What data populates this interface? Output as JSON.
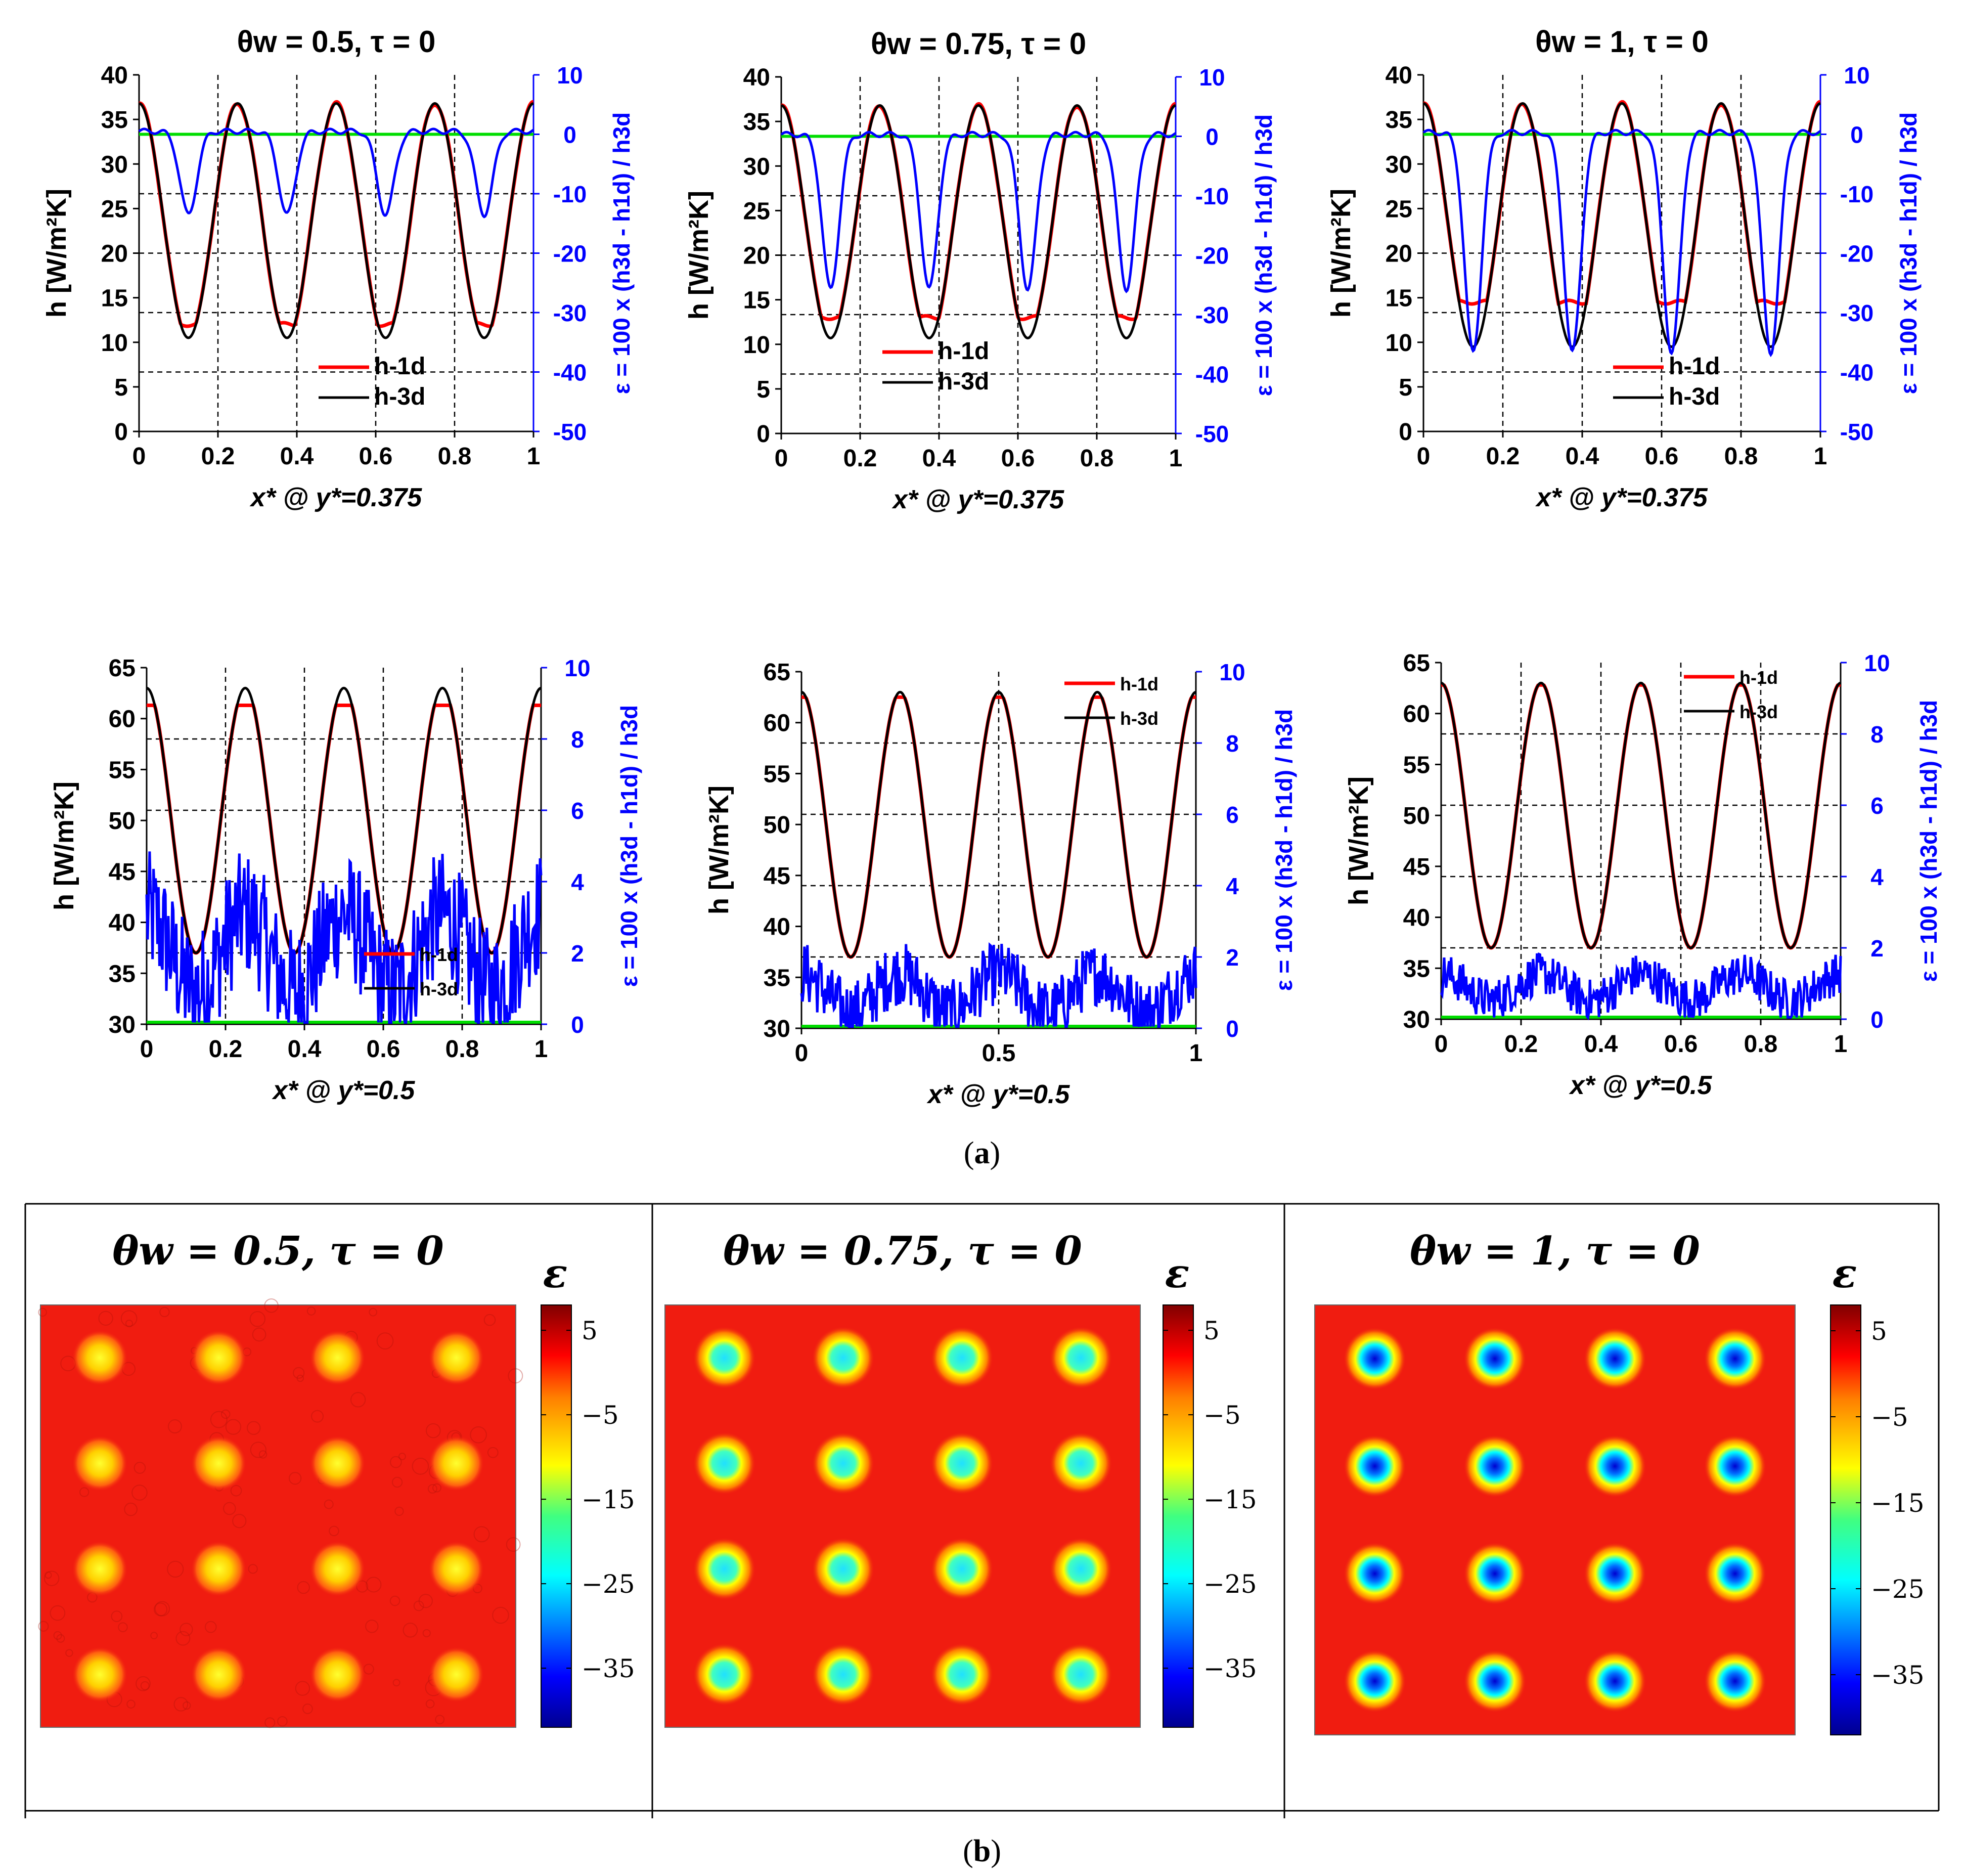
{
  "colors": {
    "h1d": "#ff0000",
    "h3d": "#000000",
    "eps": "#0000ff",
    "zero_line": "#00dd00",
    "grid": "#000000",
    "heatmap_bg": "#f01c10"
  },
  "panel_a": {
    "label": "a",
    "legend_h1d": "h-1d",
    "legend_h3d": "h-3d",
    "ylabel_left": "h [W/m²K]",
    "ylabel_right": "ε = 100 x (h3d - h1d) / h3d"
  },
  "panel_b": {
    "label": "b",
    "colorbar_title": "ε",
    "colorbar_ticks": [
      "5",
      "−5",
      "−15",
      "−25",
      "−35"
    ],
    "colorbar_values": [
      5,
      -5,
      -15,
      -25,
      -35
    ],
    "colorbar_range": [
      -42,
      8
    ]
  },
  "chart_data": [
    {
      "type": "line",
      "title": "θw = 0.5, τ = 0",
      "xlabel": "x* @ y*=0.375",
      "xlim": [
        0,
        1
      ],
      "x_ticks": [
        "0",
        "0.2",
        "0.4",
        "0.6",
        "0.8",
        "1"
      ],
      "ylim": [
        0,
        40
      ],
      "y_ticks": [
        "0",
        "5",
        "10",
        "15",
        "20",
        "25",
        "30",
        "35",
        "40"
      ],
      "y2lim": [
        -50,
        10
      ],
      "y2_ticks": [
        "-50",
        "-40",
        "-30",
        "-20",
        "-10",
        "0",
        "10"
      ],
      "series": [
        {
          "name": "h-1d",
          "axis": "left",
          "period": 0.25,
          "max": 36.8,
          "min": 12.0
        },
        {
          "name": "h-3d",
          "axis": "left",
          "period": 0.25,
          "max": 36.8,
          "min": 10.5
        },
        {
          "name": "ε",
          "axis": "right",
          "baseline": 0.5,
          "min_at_troughs": -14
        }
      ]
    },
    {
      "type": "line",
      "title": "θw = 0.75, τ = 0",
      "xlabel": "x* @ y*=0.375",
      "xlim": [
        0,
        1
      ],
      "x_ticks": [
        "0",
        "0.2",
        "0.4",
        "0.6",
        "0.8",
        "1"
      ],
      "ylim": [
        0,
        40
      ],
      "y_ticks": [
        "0",
        "5",
        "10",
        "15",
        "20",
        "25",
        "30",
        "35",
        "40"
      ],
      "y2lim": [
        -50,
        10
      ],
      "y2_ticks": [
        "-50",
        "-40",
        "-30",
        "-20",
        "-10",
        "0",
        "10"
      ],
      "series": [
        {
          "name": "h-1d",
          "axis": "left",
          "period": 0.25,
          "max": 36.8,
          "min": 13.0
        },
        {
          "name": "h-3d",
          "axis": "left",
          "period": 0.25,
          "max": 36.8,
          "min": 10.7
        },
        {
          "name": "ε",
          "axis": "right",
          "baseline": 0.3,
          "min_at_troughs": -26
        }
      ]
    },
    {
      "type": "line",
      "title": "θw = 1, τ = 0",
      "xlabel": "x* @ y*=0.375",
      "xlim": [
        0,
        1
      ],
      "x_ticks": [
        "0",
        "0.2",
        "0.4",
        "0.6",
        "0.8",
        "1"
      ],
      "ylim": [
        0,
        40
      ],
      "y_ticks": [
        "0",
        "5",
        "10",
        "15",
        "20",
        "25",
        "30",
        "35",
        "40"
      ],
      "y2lim": [
        -50,
        10
      ],
      "y2_ticks": [
        "-50",
        "-40",
        "-30",
        "-20",
        "-10",
        "0",
        "10"
      ],
      "series": [
        {
          "name": "h-1d",
          "axis": "left",
          "period": 0.25,
          "max": 36.8,
          "min": 14.5
        },
        {
          "name": "h-3d",
          "axis": "left",
          "period": 0.25,
          "max": 36.8,
          "min": 9.5
        },
        {
          "name": "ε",
          "axis": "right",
          "baseline": 0.3,
          "min_at_troughs": -37
        }
      ]
    },
    {
      "type": "line",
      "title": "",
      "xlabel": "x* @ y*=0.5",
      "xlim": [
        0,
        1
      ],
      "x_ticks": [
        "0",
        "0.2",
        "0.4",
        "0.6",
        "0.8",
        "1"
      ],
      "ylim": [
        30,
        65
      ],
      "y_ticks": [
        "30",
        "35",
        "40",
        "45",
        "50",
        "55",
        "60",
        "65"
      ],
      "y2lim": [
        0,
        10
      ],
      "y2_ticks": [
        "0",
        "2",
        "4",
        "6",
        "8",
        "10"
      ],
      "series": [
        {
          "name": "h-1d",
          "axis": "left",
          "period": 0.25,
          "max": 61.3,
          "min": 37.0
        },
        {
          "name": "h-3d",
          "axis": "left",
          "period": 0.25,
          "max": 63.0,
          "min": 37.0
        },
        {
          "name": "ε",
          "axis": "right",
          "mean": 2.0,
          "amplitude": 1.8
        }
      ]
    },
    {
      "type": "line",
      "title": "",
      "xlabel": "x* @ y*=0.5",
      "xlim": [
        0,
        1
      ],
      "x_ticks": [
        "0",
        "0.5",
        "1"
      ],
      "ylim": [
        30,
        65
      ],
      "y_ticks": [
        "30",
        "35",
        "40",
        "45",
        "50",
        "55",
        "60",
        "65"
      ],
      "y2lim": [
        0,
        10
      ],
      "y2_ticks": [
        "0",
        "2",
        "4",
        "6",
        "8",
        "10"
      ],
      "series": [
        {
          "name": "h-1d",
          "axis": "left",
          "period": 0.25,
          "max": 62.5,
          "min": 37.0
        },
        {
          "name": "h-3d",
          "axis": "left",
          "period": 0.25,
          "max": 63.0,
          "min": 37.0
        },
        {
          "name": "ε",
          "axis": "right",
          "mean": 1.0,
          "amplitude": 0.9
        }
      ]
    },
    {
      "type": "line",
      "title": "",
      "xlabel": "x* @ y*=0.5",
      "xlim": [
        0,
        1
      ],
      "x_ticks": [
        "0",
        "0.2",
        "0.4",
        "0.6",
        "0.8",
        "1"
      ],
      "ylim": [
        30,
        65
      ],
      "y_ticks": [
        "30",
        "35",
        "40",
        "45",
        "50",
        "55",
        "60",
        "65"
      ],
      "y2lim": [
        0,
        10
      ],
      "y2_ticks": [
        "0",
        "2",
        "4",
        "6",
        "8",
        "10"
      ],
      "series": [
        {
          "name": "h-1d",
          "axis": "left",
          "period": 0.25,
          "max": 62.8,
          "min": 37.0
        },
        {
          "name": "h-3d",
          "axis": "left",
          "period": 0.25,
          "max": 63.0,
          "min": 37.0
        },
        {
          "name": "ε",
          "axis": "right",
          "mean": 0.9,
          "amplitude": 0.6
        }
      ]
    },
    {
      "type": "heatmap",
      "title": "θw = 0.5, τ = 0",
      "grid": [
        4,
        4
      ],
      "spot_min_epsilon": -12
    },
    {
      "type": "heatmap",
      "title": "θw = 0.75, τ = 0",
      "grid": [
        4,
        4
      ],
      "spot_min_epsilon": -22
    },
    {
      "type": "heatmap",
      "title": "θw = 1, τ = 0",
      "grid": [
        4,
        4
      ],
      "spot_min_epsilon": -40
    }
  ]
}
